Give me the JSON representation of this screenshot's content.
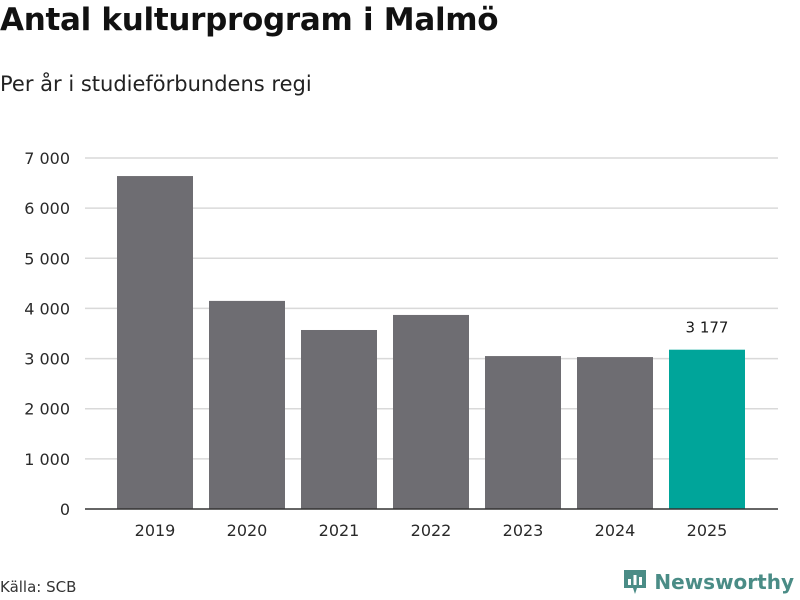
{
  "title": "Antal kulturprogram i Malmö",
  "subtitle": "Per år i studieförbundens regi",
  "source": "Källa: SCB",
  "brand": {
    "name": "Newsworthy",
    "icon": "newsworthy-logo-icon",
    "color": "#4a8c86"
  },
  "colors": {
    "bar": "#6e6d72",
    "highlight": "#00a59a",
    "grid": "#d9d9d9",
    "axis": "#333333"
  },
  "chart_data": {
    "type": "bar",
    "title": "Antal kulturprogram i Malmö",
    "subtitle": "Per år i studieförbundens regi",
    "xlabel": "",
    "ylabel": "",
    "categories": [
      "2019",
      "2020",
      "2021",
      "2022",
      "2023",
      "2024",
      "2025"
    ],
    "values": [
      6640,
      4150,
      3570,
      3870,
      3050,
      3030,
      3177
    ],
    "highlight_index": 6,
    "data_labels": [
      {
        "index": 6,
        "text": "3 177"
      }
    ],
    "ylim": [
      0,
      7000
    ],
    "yticks": [
      0,
      1000,
      2000,
      3000,
      4000,
      5000,
      6000,
      7000
    ],
    "ytick_labels": [
      "0",
      "1 000",
      "2 000",
      "3 000",
      "4 000",
      "5 000",
      "6 000",
      "7 000"
    ],
    "grid": true,
    "legend": "none"
  }
}
